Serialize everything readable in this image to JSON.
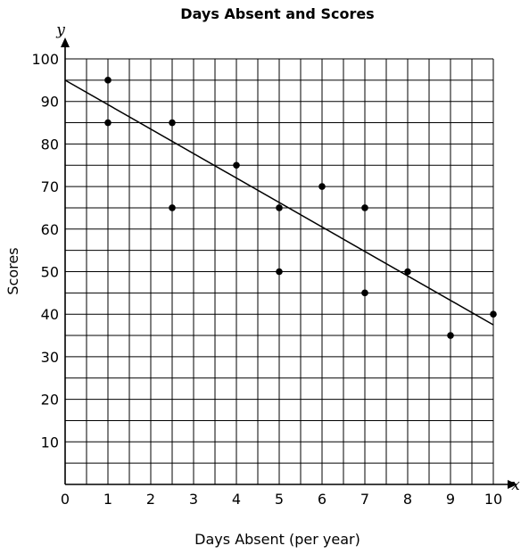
{
  "chart_data": {
    "type": "scatter",
    "title": "Days Absent and Scores",
    "xlabel": "Days Absent (per year)",
    "ylabel": "Scores",
    "x_axis_letter": "x",
    "y_axis_letter": "y",
    "xlim": [
      0,
      10
    ],
    "ylim": [
      0,
      100
    ],
    "x_ticks": [
      0,
      1,
      2,
      3,
      4,
      5,
      6,
      7,
      8,
      9,
      10
    ],
    "y_ticks": [
      10,
      20,
      30,
      40,
      50,
      60,
      70,
      80,
      90,
      100
    ],
    "grid": true,
    "grid_step_x": 0.5,
    "grid_step_y": 5,
    "points": [
      {
        "x": 1,
        "y": 95
      },
      {
        "x": 1,
        "y": 85
      },
      {
        "x": 2.5,
        "y": 85
      },
      {
        "x": 2.5,
        "y": 65
      },
      {
        "x": 4,
        "y": 75
      },
      {
        "x": 5,
        "y": 65
      },
      {
        "x": 5,
        "y": 50
      },
      {
        "x": 6,
        "y": 70
      },
      {
        "x": 7,
        "y": 65
      },
      {
        "x": 7,
        "y": 45
      },
      {
        "x": 8,
        "y": 50
      },
      {
        "x": 9,
        "y": 35
      },
      {
        "x": 10,
        "y": 40
      }
    ],
    "trend_line": {
      "x1": 0,
      "y1": 95,
      "x2": 10,
      "y2": 37.5
    }
  }
}
